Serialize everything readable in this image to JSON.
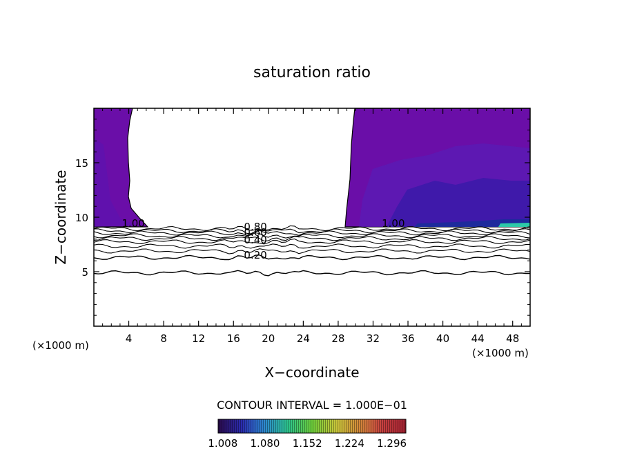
{
  "chart_data": {
    "type": "contour",
    "title": "saturation ratio",
    "xlabel": "X−coordinate",
    "ylabel": "Z−coordinate",
    "x_unit_left": "(×1000 m)",
    "x_unit_right": "(×1000 m)",
    "xlim": [
      0,
      50
    ],
    "ylim": [
      0,
      20
    ],
    "xticks": [
      4,
      8,
      12,
      16,
      20,
      24,
      28,
      32,
      36,
      40,
      44,
      48
    ],
    "yticks": [
      5,
      10,
      15
    ],
    "contour_labels": [
      {
        "text": "1.00",
        "x": 3.2,
        "z": 9.1
      },
      {
        "text": "1.00",
        "x": 33.0,
        "z": 9.1
      },
      {
        "text": "0.80",
        "x": 17.2,
        "z": 8.8
      },
      {
        "text": "0.60",
        "x": 17.2,
        "z": 8.3
      },
      {
        "text": "0.40",
        "x": 17.2,
        "z": 7.6
      },
      {
        "text": "0.20",
        "x": 17.2,
        "z": 6.2
      }
    ],
    "contour_lines": [
      {
        "level": 1.0,
        "z": 8.95
      },
      {
        "level": 0.9,
        "z": 8.75
      },
      {
        "level": 0.8,
        "z": 8.55
      },
      {
        "level": 0.7,
        "z": 8.3
      },
      {
        "level": 0.6,
        "z": 8.05
      },
      {
        "level": 0.5,
        "z": 7.75
      },
      {
        "level": 0.4,
        "z": 7.35
      },
      {
        "level": 0.3,
        "z": 6.9
      },
      {
        "level": 0.2,
        "z": 6.3
      },
      {
        "level": 0.1,
        "z": 4.9
      }
    ],
    "supersaturated_regions": [
      {
        "x_range": [
          0,
          6
        ],
        "z_range": [
          9.1,
          20
        ],
        "value_approx": 1.04
      },
      {
        "x_range": [
          29,
          50
        ],
        "z_range": [
          9.1,
          20
        ],
        "value_approx": 1.05
      }
    ],
    "contour_interval": "CONTOUR INTERVAL = 1.000E−01",
    "colorbar": {
      "ticks": [
        "1.008",
        "1.080",
        "1.152",
        "1.224",
        "1.296"
      ],
      "min": 1.0,
      "max": 1.32,
      "colors": [
        "#2a0a4a",
        "#2b2bb0",
        "#2d8bd0",
        "#2cc48a",
        "#6ccc3a",
        "#c8c83a",
        "#d28a3a",
        "#c84040",
        "#a02030"
      ]
    },
    "grid": false
  }
}
